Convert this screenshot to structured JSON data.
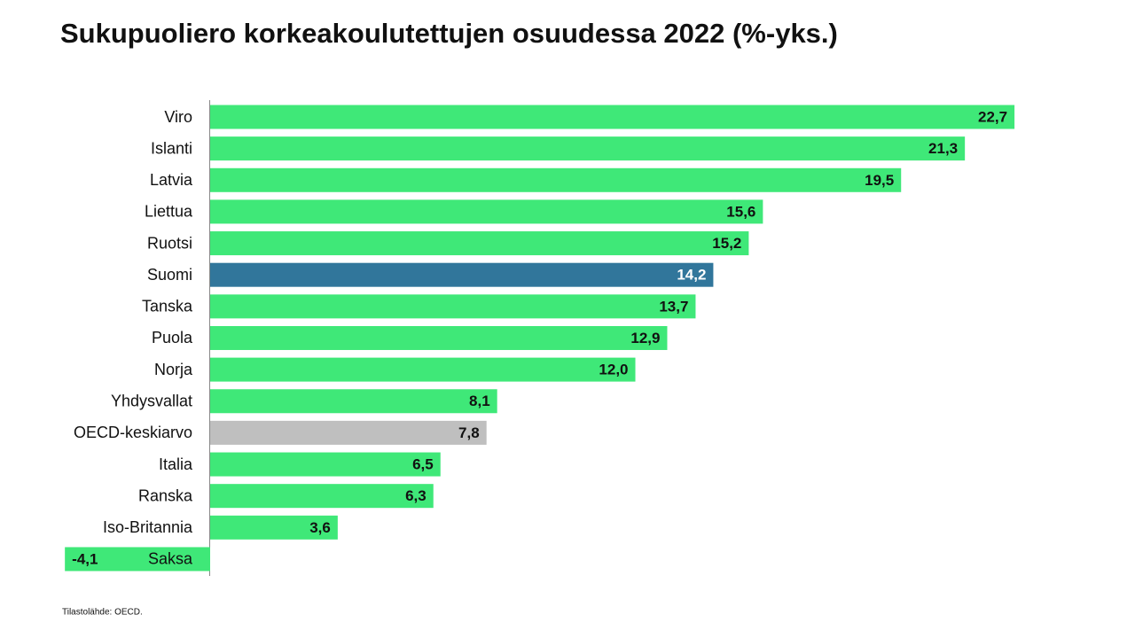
{
  "chart_data": {
    "type": "barh",
    "title": "Sukupuoliero korkeakoulutettujen osuudessa 2022 (%-yks.)",
    "categories": [
      "Viro",
      "Islanti",
      "Latvia",
      "Liettua",
      "Ruotsi",
      "Suomi",
      "Tanska",
      "Puola",
      "Norja",
      "Yhdysvallat",
      "OECD-keskiarvo",
      "Italia",
      "Ranska",
      "Iso-Britannia",
      "Saksa"
    ],
    "values": [
      22.7,
      21.3,
      19.5,
      15.6,
      15.2,
      14.2,
      13.7,
      12.9,
      12.0,
      8.1,
      7.8,
      6.5,
      6.3,
      3.6,
      -4.1
    ],
    "value_labels": [
      "22,7",
      "21,3",
      "19,5",
      "15,6",
      "15,2",
      "14,2",
      "13,7",
      "12,9",
      "12,0",
      "8,1",
      "7,8",
      "6,5",
      "6,3",
      "3,6",
      "-4,1"
    ],
    "colors": [
      "#3fe878",
      "#3fe878",
      "#3fe878",
      "#3fe878",
      "#3fe878",
      "#31769b",
      "#3fe878",
      "#3fe878",
      "#3fe878",
      "#3fe878",
      "#bfbfbf",
      "#3fe878",
      "#3fe878",
      "#3fe878",
      "#3fe878"
    ],
    "source": "Tilastolähde: OECD."
  }
}
